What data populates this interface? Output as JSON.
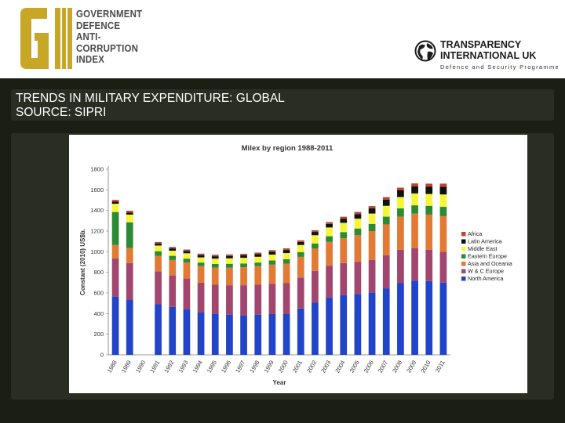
{
  "header": {
    "gi_logo_text": "GI",
    "gi_lines": [
      "GOVERNMENT",
      "DEFENCE",
      "ANTI-",
      "CORRUPTION",
      "INDEX"
    ],
    "ti_lines": [
      "TRANSPARENCY",
      "INTERNATIONAL UK"
    ],
    "ti_subtitle": "Defence and Security Programme",
    "gi_color": "#c9a726"
  },
  "slide": {
    "title_line1": "TRENDS IN MILITARY EXPENDITURE: GLOBAL",
    "title_line2": "SOURCE: SIPRI"
  },
  "chart_data": {
    "type": "bar",
    "stacked": true,
    "title": "Milex by region 1988-2011",
    "xlabel": "Year",
    "ylabel": "Constant (2010) US$b.",
    "ylim": [
      0,
      1800
    ],
    "yticks": [
      0,
      200,
      400,
      600,
      800,
      1000,
      1200,
      1400,
      1600,
      1800
    ],
    "categories": [
      "1988",
      "1989",
      "1990",
      "1991",
      "1992",
      "1993",
      "1994",
      "1995",
      "1996",
      "1997",
      "1998",
      "1999",
      "2000",
      "2001",
      "2002",
      "2003",
      "2004",
      "2005",
      "2006",
      "2007",
      "2008",
      "2009",
      "2010",
      "2011"
    ],
    "legend_position": "right",
    "series": [
      {
        "name": "North America",
        "color": "#2244c8",
        "values": [
          565,
          535,
          null,
          490,
          465,
          440,
          410,
          395,
          390,
          385,
          390,
          395,
          395,
          450,
          505,
          555,
          580,
          590,
          605,
          645,
          695,
          720,
          715,
          700
        ]
      },
      {
        "name": "W & C Europe",
        "color": "#a1466e",
        "values": [
          370,
          355,
          null,
          320,
          305,
          300,
          290,
          285,
          285,
          290,
          290,
          295,
          300,
          300,
          310,
          310,
          310,
          310,
          315,
          320,
          325,
          315,
          305,
          300
        ]
      },
      {
        "name": "Asia and Oceania",
        "color": "#e27a35",
        "values": [
          130,
          145,
          null,
          150,
          150,
          155,
          160,
          165,
          170,
          175,
          180,
          185,
          190,
          200,
          215,
          230,
          240,
          260,
          280,
          300,
          320,
          335,
          340,
          345
        ]
      },
      {
        "name": "Eastern Europe",
        "color": "#2c8a35",
        "values": [
          320,
          250,
          null,
          45,
          40,
          38,
          35,
          36,
          38,
          36,
          35,
          40,
          42,
          45,
          50,
          55,
          60,
          65,
          70,
          75,
          80,
          80,
          85,
          90
        ]
      },
      {
        "name": "Middle East",
        "color": "#f5f53a",
        "values": [
          80,
          75,
          null,
          55,
          50,
          52,
          50,
          52,
          53,
          55,
          56,
          57,
          60,
          70,
          80,
          85,
          90,
          95,
          100,
          105,
          110,
          115,
          115,
          120
        ]
      },
      {
        "name": "Latin America",
        "color": "#111111",
        "values": [
          20,
          20,
          null,
          20,
          22,
          22,
          22,
          23,
          23,
          24,
          26,
          28,
          30,
          30,
          32,
          35,
          40,
          45,
          50,
          60,
          65,
          70,
          72,
          75
        ]
      },
      {
        "name": "Africa",
        "color": "#c8412a",
        "values": [
          15,
          15,
          null,
          12,
          12,
          12,
          12,
          12,
          12,
          12,
          12,
          13,
          13,
          13,
          14,
          15,
          17,
          18,
          20,
          22,
          24,
          25,
          26,
          28
        ]
      }
    ]
  }
}
